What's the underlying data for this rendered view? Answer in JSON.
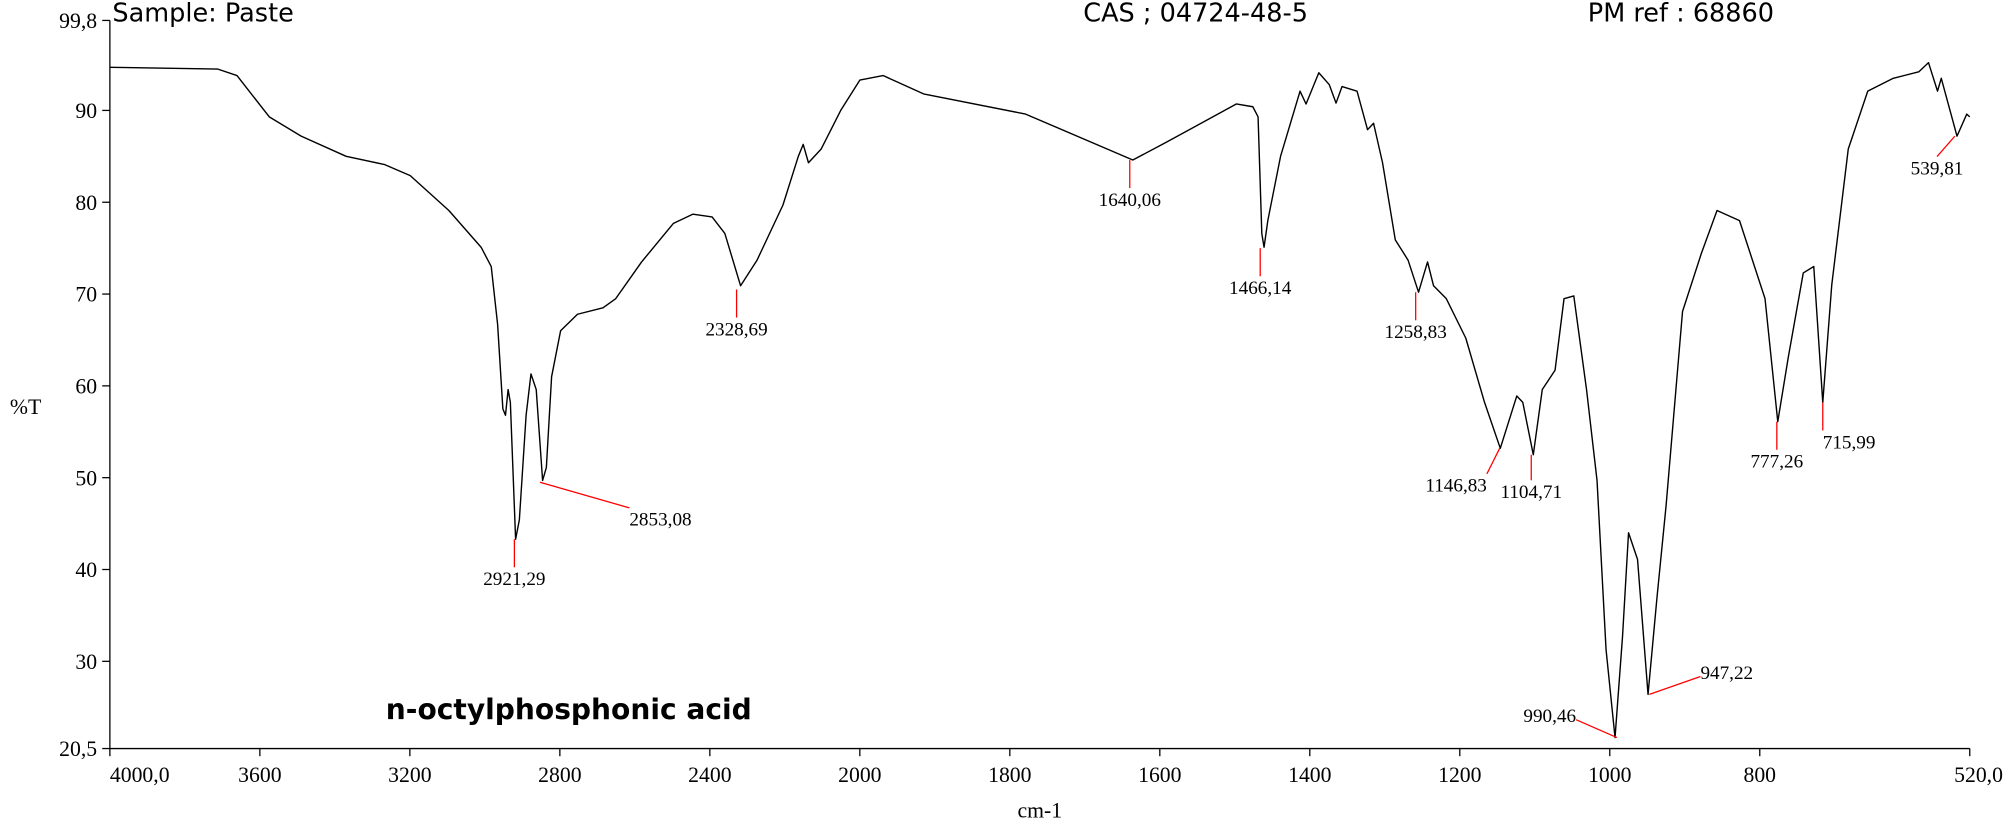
{
  "chart_data": {
    "type": "line",
    "header": [
      "Sample: Paste",
      "CAS ; 04724-48-5",
      "PM ref : 68860"
    ],
    "title": "n-octylphosphonic acid",
    "xlabel": "cm-1",
    "ylabel": "%T",
    "xlim": [
      4000,
      520
    ],
    "x_break": 2000,
    "x_expand": 2,
    "ylim": [
      20.5,
      99.8
    ],
    "xticks": [
      {
        "value": 4000,
        "label": "4000,0"
      },
      3600,
      3200,
      2800,
      2400,
      2000,
      1800,
      1600,
      1400,
      1200,
      1000,
      800,
      {
        "value": 520,
        "label": "520,0"
      }
    ],
    "yticks": [
      {
        "value": 20.5,
        "label": "20,5"
      },
      30,
      40,
      50,
      60,
      70,
      80,
      90,
      {
        "value": 99.8,
        "label": "99,8"
      }
    ],
    "series": [
      {
        "color": "#000000",
        "x": [
          4000,
          3712,
          3661,
          3575,
          3490,
          3370,
          3267,
          3199,
          3096,
          3010,
          2983,
          2966,
          2952,
          2945,
          2938,
          2932,
          2918,
          2908,
          2890,
          2877,
          2863,
          2846,
          2836,
          2822,
          2798,
          2753,
          2685,
          2651,
          2582,
          2497,
          2445,
          2394,
          2360,
          2318,
          2274,
          2205,
          2164,
          2151,
          2137,
          2103,
          2051,
          2000,
          1969,
          1915,
          1779,
          1636,
          1592,
          1498,
          1476,
          1469,
          1464,
          1461,
          1456,
          1439,
          1413,
          1405,
          1388,
          1374,
          1365,
          1357,
          1337,
          1323,
          1315,
          1303,
          1286,
          1269,
          1255,
          1243,
          1235,
          1218,
          1192,
          1167,
          1146,
          1124,
          1116,
          1102,
          1090,
          1073,
          1061,
          1048,
          1031,
          1017,
          1005,
          993,
          983,
          975,
          963,
          949,
          937,
          925,
          903,
          878,
          857,
          827,
          793,
          776,
          762,
          742,
          728,
          716,
          704,
          682,
          656,
          622,
          588,
          575,
          563,
          558,
          537,
          524,
          520
        ],
        "values": [
          94.7,
          94.5,
          93.8,
          89.3,
          87.2,
          85.0,
          84.1,
          82.9,
          79.1,
          75.1,
          73.0,
          66.7,
          57.5,
          56.8,
          59.6,
          58.2,
          43.3,
          45.4,
          56.8,
          61.3,
          59.6,
          49.7,
          51.1,
          61.0,
          66.0,
          67.8,
          68.5,
          69.5,
          73.5,
          77.7,
          78.7,
          78.4,
          76.6,
          70.9,
          73.7,
          79.7,
          85.0,
          86.3,
          84.3,
          85.8,
          90.0,
          93.3,
          93.8,
          91.8,
          89.6,
          84.6,
          86.5,
          90.7,
          90.4,
          89.3,
          76.6,
          75.1,
          78.0,
          85.0,
          92.1,
          90.7,
          94.1,
          92.8,
          90.8,
          92.6,
          92.1,
          87.9,
          88.6,
          84.3,
          75.9,
          73.7,
          70.2,
          73.5,
          70.9,
          69.5,
          65.2,
          58.2,
          53.2,
          58.9,
          58.2,
          52.5,
          59.6,
          61.7,
          69.5,
          69.8,
          59.6,
          49.7,
          31.3,
          21.7,
          32.7,
          44.0,
          41.1,
          26.4,
          37.0,
          46.9,
          68.1,
          74.4,
          79.1,
          78.0,
          69.5,
          56.1,
          63.1,
          72.3,
          73.0,
          58.2,
          71.0,
          85.8,
          92.1,
          93.5,
          94.2,
          95.2,
          92.1,
          93.5,
          87.2,
          89.6,
          89.3
        ]
      }
    ],
    "peak_color": "#ff0000",
    "peaks": [
      {
        "label": "2921,29",
        "x": 2921.29,
        "y": 43.3
      },
      {
        "label": "2853,08",
        "x": 2853.08,
        "y": 49.5
      },
      {
        "label": "2328,69",
        "x": 2328.69,
        "y": 70.5
      },
      {
        "label": "1640,06",
        "x": 1640.06,
        "y": 84.6
      },
      {
        "label": "1466,14",
        "x": 1466.14,
        "y": 75.0
      },
      {
        "label": "1258,83",
        "x": 1258.83,
        "y": 70.2
      },
      {
        "label": "1146,83",
        "x": 1146.83,
        "y": 53.2
      },
      {
        "label": "1104,71",
        "x": 1104.71,
        "y": 52.5
      },
      {
        "label": "990,46",
        "x": 990.46,
        "y": 21.7
      },
      {
        "label": "947,22",
        "x": 947.22,
        "y": 26.4
      },
      {
        "label": "777,26",
        "x": 777.26,
        "y": 56.1
      },
      {
        "label": "715,99",
        "x": 715.99,
        "y": 58.2
      },
      {
        "label": "539,81",
        "x": 539.81,
        "y": 87.2
      }
    ]
  }
}
